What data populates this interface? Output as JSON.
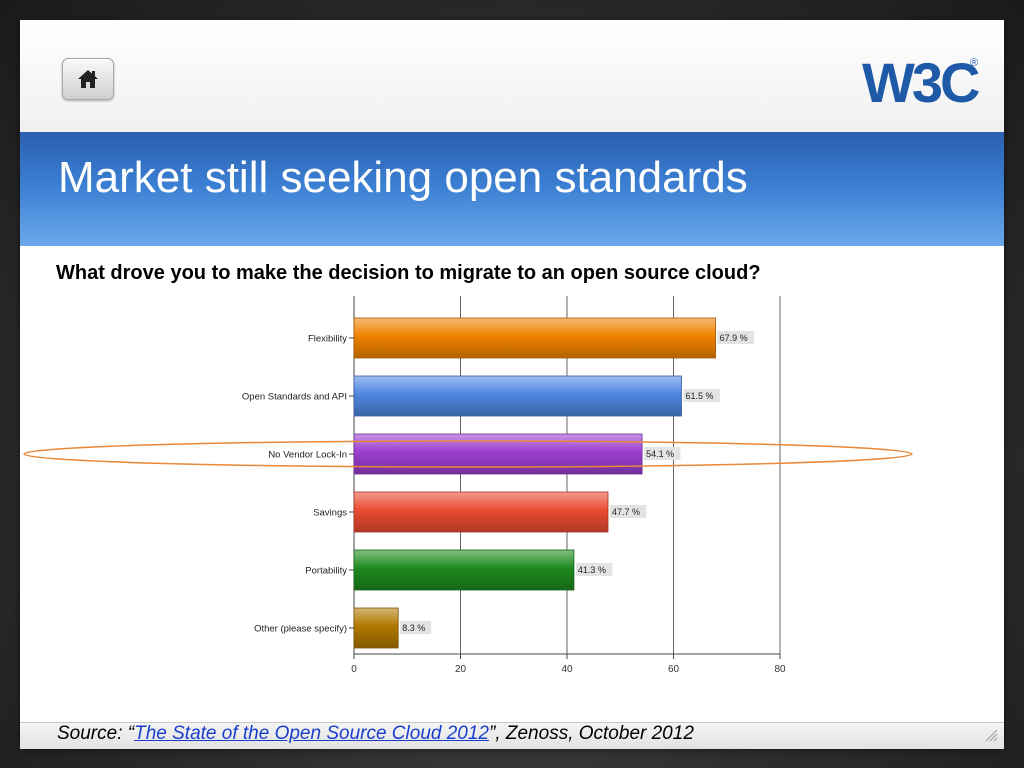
{
  "slide": {
    "title": "Market still seeking open standards",
    "question": "What drove you to make the decision to migrate to an open source cloud?",
    "home_button_icon": "home-icon",
    "logo_text": "W3C"
  },
  "source": {
    "prefix": "Source: “",
    "link_text": "The State of the Open Source Cloud 2012",
    "suffix": "”, Zenoss, October 2012"
  },
  "chart_data": {
    "type": "bar",
    "orientation": "horizontal",
    "categories": [
      "Flexibility",
      "Open Standards and API",
      "No Vendor Lock-In",
      "Savings",
      "Portability",
      "Other (please specify)"
    ],
    "values": [
      67.9,
      61.5,
      54.1,
      47.7,
      41.3,
      8.3
    ],
    "value_labels": [
      "67.9 %",
      "61.5 %",
      "54.1 %",
      "47.7 %",
      "41.3 %",
      "8.3 %"
    ],
    "colors": [
      "#f08200",
      "#4f86e0",
      "#9b3fcf",
      "#ea4b33",
      "#1e8a1e",
      "#b07800"
    ],
    "x_ticks": [
      "0",
      "20",
      "40",
      "60",
      "80"
    ],
    "xlim": [
      0,
      80
    ],
    "grid": true,
    "highlighted_category": "No Vendor Lock-In",
    "highlight_color": "#e8883a"
  }
}
